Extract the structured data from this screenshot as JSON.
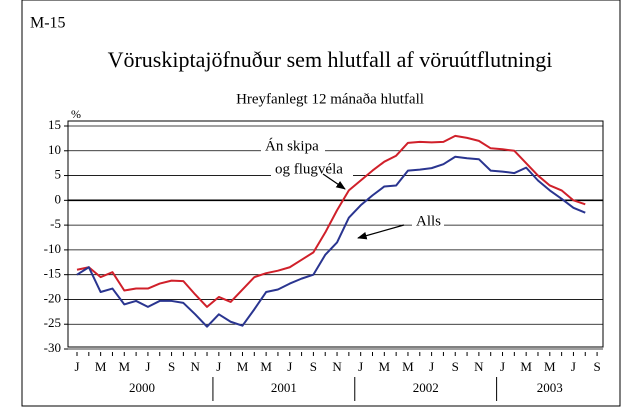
{
  "chart_data": {
    "type": "line",
    "label": "M-15",
    "title": "Vöruskiptajöfnuður sem hlutfall af vöruútflutningi",
    "subtitle": "Hreyfanlegt 12 mánaða hlutfall",
    "y_label": "%",
    "categories": [
      "J",
      null,
      "M",
      null,
      "M",
      null,
      "J",
      null,
      "S",
      null,
      "N",
      null,
      "J",
      null,
      "M",
      null,
      "M",
      null,
      "J",
      null,
      "S",
      null,
      "N",
      null,
      "J",
      null,
      "M",
      null,
      "M",
      null,
      "J",
      null,
      "S",
      null,
      "N",
      null,
      "J",
      null,
      "M",
      null,
      "M",
      null,
      "J",
      null,
      "S"
    ],
    "years": [
      "2000",
      "2001",
      "2002",
      "2003"
    ],
    "series": [
      {
        "name": "Án skipa og flugvéla",
        "color": "#d0202a",
        "values": [
          -14,
          -13.5,
          -15.5,
          -14.5,
          -18.2,
          -17.8,
          -17.8,
          -16.8,
          -16.2,
          -16.3,
          -19,
          -21.5,
          -19.5,
          -20.5,
          -18,
          -15.5,
          -14.7,
          -14.2,
          -13.5,
          -12,
          -10.5,
          -6.5,
          -2,
          2,
          4,
          6,
          7.8,
          9,
          11.6,
          11.8,
          11.7,
          11.8,
          13,
          12.6,
          12,
          10.5,
          10.3,
          10,
          7.5,
          5,
          3,
          2,
          0,
          -0.8,
          null
        ]
      },
      {
        "name": "Alls",
        "color": "#2a3590",
        "values": [
          -15,
          -13.5,
          -18.5,
          -17.8,
          -21,
          -20.3,
          -21.5,
          -20.3,
          -20.3,
          -20.7,
          -23,
          -25.5,
          -23,
          -24.5,
          -25.3,
          -22,
          -18.5,
          -18,
          -16.8,
          -15.8,
          -15,
          -11,
          -8.5,
          -3.5,
          -1,
          1,
          2.8,
          3,
          6,
          6.2,
          6.5,
          7.3,
          8.8,
          8.5,
          8.3,
          6,
          5.8,
          5.5,
          6.6,
          4,
          2,
          0.3,
          -1.5,
          -2.5,
          null
        ]
      }
    ],
    "annotations": [
      "Án skipa",
      "og flugvéla",
      "Alls"
    ],
    "ylim": [
      -30,
      15
    ],
    "yticks": [
      15,
      10,
      5,
      0,
      -5,
      -10,
      -15,
      -20,
      -25,
      -30
    ],
    "grid": true
  }
}
